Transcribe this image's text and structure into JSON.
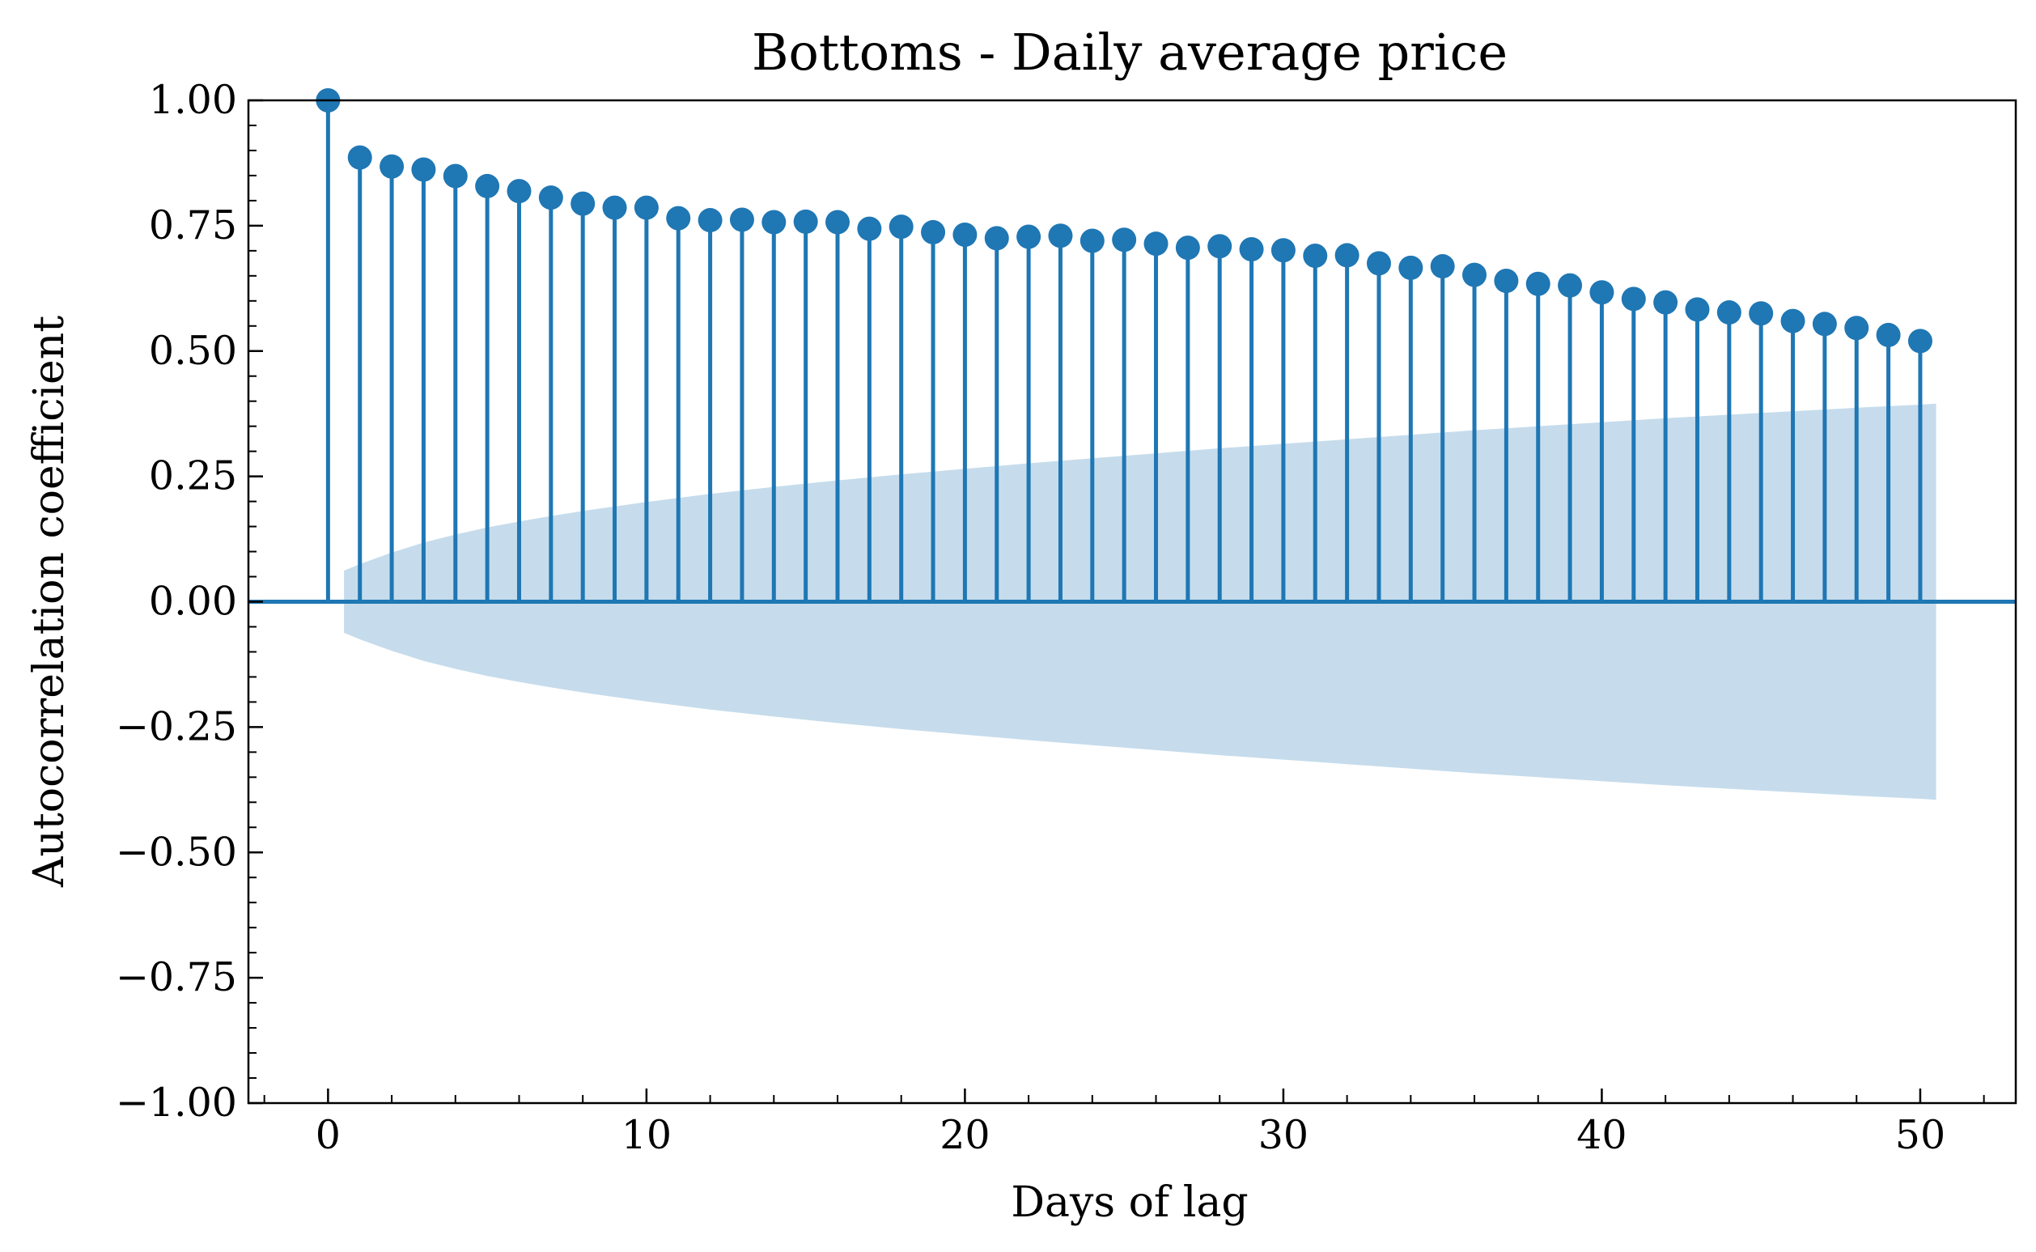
{
  "chart_data": {
    "type": "stem",
    "title": "Bottoms - Daily average price",
    "xlabel": "Days of lag",
    "ylabel": "Autocorrelation coefficient",
    "xlim": [
      -2.5,
      53
    ],
    "ylim": [
      -1.0,
      1.0
    ],
    "x_ticks": [
      0,
      10,
      20,
      30,
      40,
      50
    ],
    "x_tick_labels": [
      "0",
      "10",
      "20",
      "30",
      "40",
      "50"
    ],
    "x_minor_step": 2,
    "y_ticks": [
      -1.0,
      -0.75,
      -0.5,
      -0.25,
      0.0,
      0.25,
      0.5,
      0.75,
      1.0
    ],
    "y_tick_labels": [
      "−1.00",
      "−0.75",
      "−0.50",
      "−0.25",
      "0.00",
      "0.25",
      "0.50",
      "0.75",
      "1.00"
    ],
    "y_minor_step": 0.05,
    "grid": false,
    "colors": {
      "stem": "#1f77b4",
      "confidence_band": "#c6dcec"
    },
    "series": [
      {
        "lags": [
          0,
          1,
          2,
          3,
          4,
          5,
          6,
          7,
          8,
          9,
          10,
          11,
          12,
          13,
          14,
          15,
          16,
          17,
          18,
          19,
          20,
          21,
          22,
          23,
          24,
          25,
          26,
          27,
          28,
          29,
          30,
          31,
          32,
          33,
          34,
          35,
          36,
          37,
          38,
          39,
          40,
          41,
          42,
          43,
          44,
          45,
          46,
          47,
          48,
          49,
          50
        ],
        "values": [
          1.0,
          0.886,
          0.868,
          0.862,
          0.849,
          0.829,
          0.819,
          0.806,
          0.794,
          0.786,
          0.786,
          0.765,
          0.761,
          0.762,
          0.757,
          0.758,
          0.757,
          0.744,
          0.748,
          0.737,
          0.732,
          0.725,
          0.728,
          0.73,
          0.72,
          0.722,
          0.714,
          0.706,
          0.709,
          0.703,
          0.701,
          0.69,
          0.691,
          0.675,
          0.666,
          0.669,
          0.652,
          0.64,
          0.634,
          0.631,
          0.617,
          0.604,
          0.597,
          0.583,
          0.577,
          0.575,
          0.56,
          0.554,
          0.546,
          0.532,
          0.52
        ]
      }
    ],
    "confidence_band": {
      "x": [
        0.5,
        1,
        2,
        3,
        4,
        5,
        6,
        7,
        8,
        9,
        10,
        12,
        14,
        16,
        18,
        20,
        22,
        24,
        26,
        28,
        30,
        32,
        34,
        36,
        38,
        40,
        42,
        44,
        46,
        48,
        50,
        50.5
      ],
      "upper": [
        0.062,
        0.075,
        0.098,
        0.118,
        0.134,
        0.148,
        0.16,
        0.171,
        0.181,
        0.19,
        0.199,
        0.215,
        0.229,
        0.242,
        0.254,
        0.265,
        0.276,
        0.286,
        0.296,
        0.306,
        0.315,
        0.324,
        0.333,
        0.342,
        0.35,
        0.358,
        0.366,
        0.373,
        0.38,
        0.387,
        0.393,
        0.395
      ]
    }
  }
}
